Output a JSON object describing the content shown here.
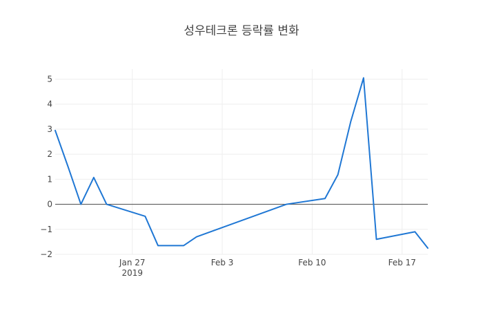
{
  "chart_data": {
    "type": "line",
    "title": "성우테크론 등락률 변화",
    "xlabel": "",
    "ylabel": "",
    "x_range": [
      "2019-01-21",
      "2019-02-19"
    ],
    "ylim": [
      -2.0,
      5.4
    ],
    "grid": true,
    "y_ticks": [
      {
        "value": 5,
        "label": "5"
      },
      {
        "value": 4,
        "label": "4"
      },
      {
        "value": 3,
        "label": "3"
      },
      {
        "value": 2,
        "label": "2"
      },
      {
        "value": 1,
        "label": "1"
      },
      {
        "value": 0,
        "label": "0"
      },
      {
        "value": -1,
        "label": "−1"
      },
      {
        "value": -2,
        "label": "−2"
      }
    ],
    "x_ticks": [
      {
        "date": "2019-01-27",
        "label": "Jan 27",
        "sublabel": "2019"
      },
      {
        "date": "2019-02-03",
        "label": "Feb 3",
        "sublabel": ""
      },
      {
        "date": "2019-02-10",
        "label": "Feb 10",
        "sublabel": ""
      },
      {
        "date": "2019-02-17",
        "label": "Feb 17",
        "sublabel": ""
      }
    ],
    "series": [
      {
        "color": "#1f77d4",
        "points": [
          {
            "x": "2019-01-21",
            "y": 2.95
          },
          {
            "x": "2019-01-22",
            "y": 1.5
          },
          {
            "x": "2019-01-23",
            "y": 0.0
          },
          {
            "x": "2019-01-24",
            "y": 1.07
          },
          {
            "x": "2019-01-25",
            "y": 0.0
          },
          {
            "x": "2019-01-28",
            "y": -0.48
          },
          {
            "x": "2019-01-29",
            "y": -1.65
          },
          {
            "x": "2019-01-31",
            "y": -1.65
          },
          {
            "x": "2019-02-01",
            "y": -1.3
          },
          {
            "x": "2019-02-08",
            "y": 0.0
          },
          {
            "x": "2019-02-11",
            "y": 0.23
          },
          {
            "x": "2019-02-12",
            "y": 1.18
          },
          {
            "x": "2019-02-13",
            "y": 3.3
          },
          {
            "x": "2019-02-14",
            "y": 5.05
          },
          {
            "x": "2019-02-15",
            "y": -1.4
          },
          {
            "x": "2019-02-18",
            "y": -1.1
          },
          {
            "x": "2019-02-19",
            "y": -1.75
          }
        ]
      }
    ]
  }
}
